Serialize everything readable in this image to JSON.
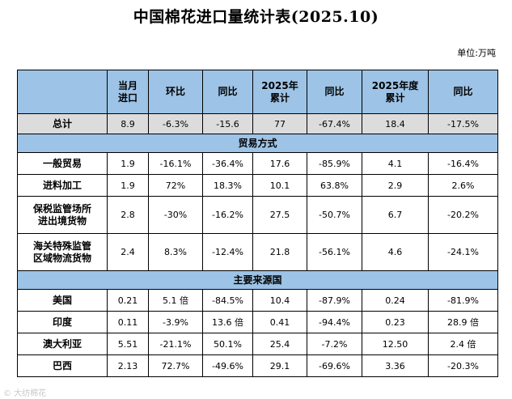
{
  "title": "中国棉花进口量统计表(2025.10)",
  "unit": "单位:万吨",
  "headers": [
    "",
    "当月\n进口",
    "环比",
    "同比",
    "2025年\n累计",
    "同比",
    "2025年度\n累计",
    "同比"
  ],
  "total": {
    "label": "总计",
    "cells": [
      "8.9",
      "-6.3%",
      "-15.6",
      "77",
      "-67.4%",
      "18.4",
      "-17.5%"
    ]
  },
  "sections": [
    {
      "title": "贸易方式",
      "rows": [
        {
          "label": "一般贸易",
          "cells": [
            "1.9",
            "-16.1%",
            "-36.4%",
            "17.6",
            "-85.9%",
            "4.1",
            "-16.4%"
          ]
        },
        {
          "label": "进料加工",
          "cells": [
            "1.9",
            "72%",
            "18.3%",
            "10.1",
            "63.8%",
            "2.9",
            "2.6%"
          ]
        },
        {
          "label": "保税监管场所\n进出境货物",
          "cells": [
            "2.8",
            "-30%",
            "-16.2%",
            "27.5",
            "-50.7%",
            "6.7",
            "-20.2%"
          ]
        },
        {
          "label": "海关特殊监管\n区域物流货物",
          "cells": [
            "2.4",
            "8.3%",
            "-12.4%",
            "21.8",
            "-56.1%",
            "4.6",
            "-24.1%"
          ]
        }
      ]
    },
    {
      "title": "主要来源国",
      "rows": [
        {
          "label": "美国",
          "cells": [
            "0.21",
            "5.1 倍",
            "-84.5%",
            "10.4",
            "-87.9%",
            "0.24",
            "-81.9%"
          ]
        },
        {
          "label": "印度",
          "cells": [
            "0.11",
            "-3.9%",
            "13.6 倍",
            "0.41",
            "-94.4%",
            "0.23",
            "28.9 倍"
          ]
        },
        {
          "label": "澳大利亚",
          "cells": [
            "5.51",
            "-21.1%",
            "50.1%",
            "25.4",
            "-7.2%",
            "12.50",
            "2.4 倍"
          ]
        },
        {
          "label": "巴西",
          "cells": [
            "2.13",
            "72.7%",
            "-49.6%",
            "29.1",
            "-69.6%",
            "3.36",
            "-20.3%"
          ]
        }
      ]
    }
  ],
  "watermark": "© 大纺棉花"
}
